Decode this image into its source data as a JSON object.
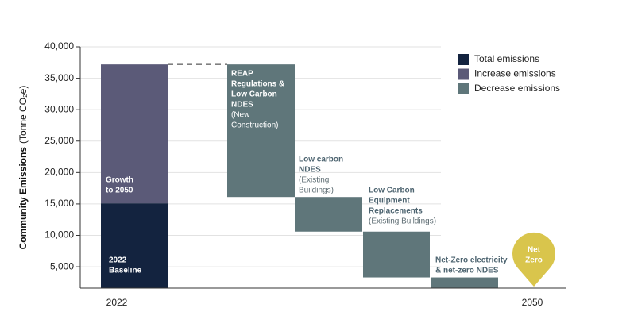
{
  "chart_data": {
    "type": "waterfall",
    "ylabel": "Community Emissions",
    "ylabel_unit": "(Tonne CO₂e)",
    "ylim": [
      1600,
      40000
    ],
    "yticks": [
      {
        "value": 5000,
        "label": "5,000"
      },
      {
        "value": 10000,
        "label": "10,000"
      },
      {
        "value": 15000,
        "label": "15,000"
      },
      {
        "value": 20000,
        "label": "20,000"
      },
      {
        "value": 25000,
        "label": "25,000"
      },
      {
        "value": 30000,
        "label": "30,000"
      },
      {
        "value": 35000,
        "label": "35,000"
      },
      {
        "value": 40000,
        "label": "40,000"
      }
    ],
    "grid": true,
    "categories": [
      "2022",
      "2050"
    ],
    "series": [
      {
        "name": "Total emissions",
        "color": "#13233f"
      },
      {
        "name": "Increase emissions",
        "color": "#5b5a78"
      },
      {
        "name": "Decrease emissions",
        "color": "#5f767a"
      }
    ],
    "steps": [
      {
        "series": 0,
        "value": 15100,
        "label": [
          "2022",
          "Baseline"
        ]
      },
      {
        "series": 1,
        "value": 22100,
        "label": [
          "Growth",
          "to 2050"
        ]
      },
      {
        "series": 2,
        "value": 21100,
        "label": [
          "REAP",
          "Regulations &",
          "Low Carbon",
          "NDES"
        ],
        "note": [
          "(New",
          "Construction)"
        ]
      },
      {
        "series": 2,
        "value": 5500,
        "label": [
          "Low carbon",
          "NDES"
        ],
        "note": [
          "(Existing",
          "Buildings)"
        ]
      },
      {
        "series": 2,
        "value": 7300,
        "label": [
          "Low Carbon",
          "Equipment",
          "Replacements"
        ],
        "note": [
          "(Existing Buildings)"
        ]
      },
      {
        "series": 2,
        "value": 1700,
        "label": [
          "Net-Zero electricity",
          "& net-zero NDES"
        ]
      }
    ],
    "end_marker": {
      "label": [
        "Net",
        "Zero"
      ],
      "color": "#d9c54c"
    }
  }
}
